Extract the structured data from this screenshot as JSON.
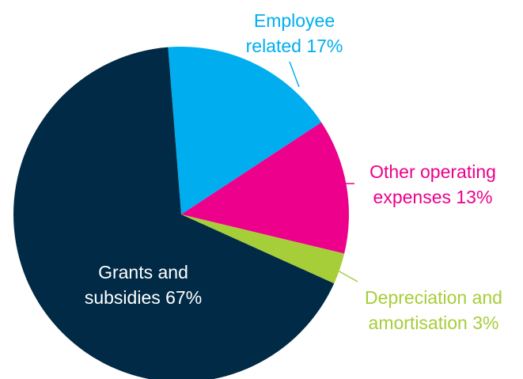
{
  "chart_data": {
    "type": "pie",
    "title": "",
    "slices": [
      {
        "label": "Employee related 17%",
        "label_lines": [
          "Employee",
          "related 17%"
        ],
        "value": 17,
        "color": "#00AEEF",
        "label_color": "#00AEEF"
      },
      {
        "label": "Other operating expenses 13%",
        "label_lines": [
          "Other operating",
          "expenses 13%"
        ],
        "value": 13,
        "color": "#EC008C",
        "label_color": "#EC008C"
      },
      {
        "label": "Depreciation and amortisation 3%",
        "label_lines": [
          "Depreciation and",
          "amortisation 3%"
        ],
        "value": 3,
        "color": "#A6CE39",
        "label_color": "#A6CE39"
      },
      {
        "label": "Grants and subsidies 67%",
        "label_lines": [
          "Grants and",
          "subsidies 67%"
        ],
        "value": 67,
        "color": "#002A45",
        "label_color": "#FFFFFF"
      }
    ],
    "legend": "none",
    "label_placement": "outside with leader lines; largest slice labelled inside"
  }
}
